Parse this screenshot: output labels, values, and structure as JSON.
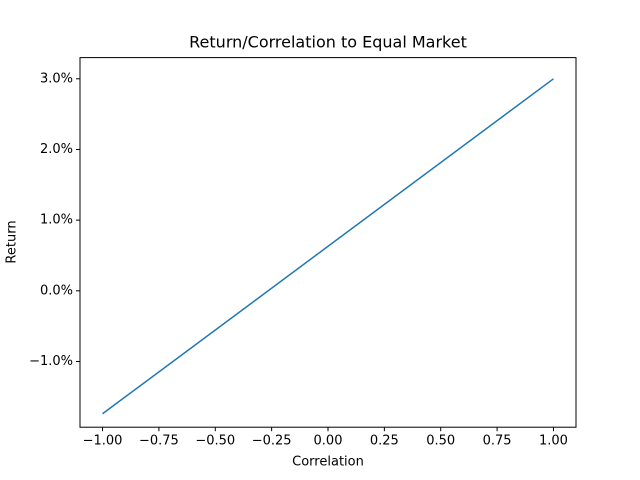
{
  "chart_data": {
    "type": "line",
    "title": "Return/Correlation to Equal Market",
    "x_label": "Correlation",
    "y_label": "Return",
    "x": [
      -1,
      1
    ],
    "series": [
      {
        "name": "Return",
        "color": "#1f77b4",
        "values": [
          -1.74,
          3.0
        ]
      }
    ],
    "xlim": [
      -1.1,
      1.1
    ],
    "ylim": [
      -1.93,
      3.3
    ],
    "xticks": [
      {
        "value": -1,
        "label": "−1.00"
      },
      {
        "value": -0.75,
        "label": "−0.75"
      },
      {
        "value": -0.5,
        "label": "−0.50"
      },
      {
        "value": -0.25,
        "label": "−0.25"
      },
      {
        "value": 0,
        "label": "0.00"
      },
      {
        "value": 0.25,
        "label": "0.25"
      },
      {
        "value": 0.5,
        "label": "0.50"
      },
      {
        "value": 0.75,
        "label": "0.75"
      },
      {
        "value": 1,
        "label": "1.00"
      }
    ],
    "yticks": [
      {
        "value": -1,
        "label": "−1.0%"
      },
      {
        "value": 0,
        "label": "0.0%"
      },
      {
        "value": 1,
        "label": "1.0%"
      },
      {
        "value": 2,
        "label": "2.0%"
      },
      {
        "value": 3,
        "label": "3.0%"
      }
    ],
    "grid": false
  }
}
